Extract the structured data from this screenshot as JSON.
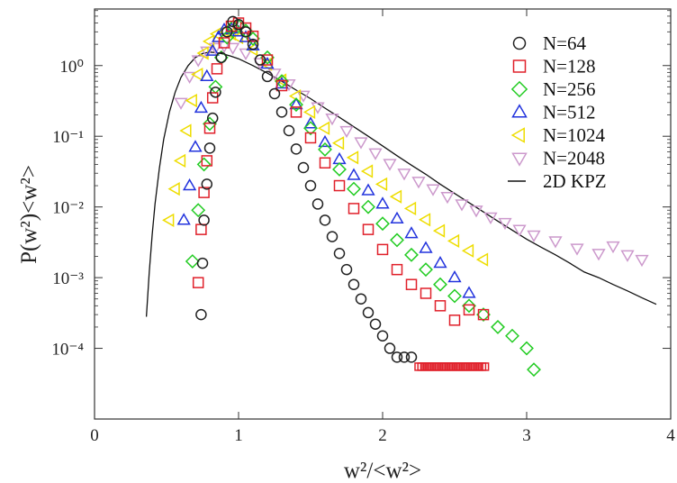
{
  "chart_data": {
    "type": "scatter",
    "xlabel": "w²/<w²>",
    "ylabel": "P(w²)<w²>",
    "xlim": [
      0,
      4
    ],
    "ylim_log10": [
      -5,
      0.8
    ],
    "yscale": "log",
    "grid": false,
    "legend_placement": "top-right",
    "x_ticks": [
      {
        "value": 0,
        "label": "0"
      },
      {
        "value": 1,
        "label": "1"
      },
      {
        "value": 2,
        "label": "2"
      },
      {
        "value": 3,
        "label": "3"
      },
      {
        "value": 4,
        "label": "4"
      }
    ],
    "y_ticks": [
      {
        "value": 0,
        "label": "10⁰"
      },
      {
        "value": -1,
        "label": "10⁻¹"
      },
      {
        "value": -2,
        "label": "10⁻²"
      },
      {
        "value": -3,
        "label": "10⁻³"
      },
      {
        "value": -4,
        "label": "10⁻⁴"
      }
    ],
    "series": [
      {
        "name": "N=64",
        "marker": "circle",
        "color": "#222222",
        "x": [
          0.74,
          0.75,
          0.76,
          0.78,
          0.8,
          0.82,
          0.84,
          0.88,
          0.92,
          0.96,
          1.0,
          1.05,
          1.1,
          1.15,
          1.2,
          1.25,
          1.3,
          1.35,
          1.4,
          1.45,
          1.5,
          1.55,
          1.6,
          1.65,
          1.7,
          1.75,
          1.8,
          1.85,
          1.9,
          1.95,
          2.0,
          2.05,
          2.1,
          2.15,
          2.2
        ],
        "y": [
          0.0003,
          0.0016,
          0.0065,
          0.021,
          0.068,
          0.18,
          0.42,
          1.3,
          3.0,
          4.2,
          3.8,
          3.0,
          2.0,
          1.2,
          0.7,
          0.4,
          0.22,
          0.12,
          0.066,
          0.036,
          0.02,
          0.011,
          0.0065,
          0.0038,
          0.0022,
          0.0013,
          0.0008,
          0.0005,
          0.00032,
          0.00022,
          0.00015,
          0.0001,
          7.5e-05,
          7.5e-05,
          7.5e-05
        ]
      },
      {
        "name": "N=128",
        "marker": "square",
        "color": "#e0202a",
        "x": [
          0.72,
          0.74,
          0.76,
          0.78,
          0.8,
          0.82,
          0.85,
          0.9,
          0.95,
          1.0,
          1.05,
          1.1,
          1.2,
          1.3,
          1.4,
          1.5,
          1.6,
          1.7,
          1.8,
          1.9,
          2.0,
          2.1,
          2.2,
          2.3,
          2.4,
          2.5,
          2.6,
          2.7
        ],
        "y": [
          0.00085,
          0.0048,
          0.016,
          0.045,
          0.13,
          0.35,
          0.9,
          2.1,
          3.6,
          4.0,
          3.4,
          2.6,
          1.2,
          0.52,
          0.22,
          0.095,
          0.042,
          0.02,
          0.0095,
          0.0048,
          0.0025,
          0.0013,
          0.0008,
          0.0006,
          0.0004,
          0.00025,
          0.00035,
          0.0003
        ],
        "plateau": {
          "x": [
            2.25,
            2.72
          ],
          "y": 5.5e-05
        }
      },
      {
        "name": "N=256",
        "marker": "diamond",
        "color": "#22cc22",
        "x": [
          0.68,
          0.72,
          0.76,
          0.8,
          0.84,
          0.88,
          0.92,
          0.96,
          1.0,
          1.05,
          1.1,
          1.2,
          1.3,
          1.4,
          1.5,
          1.6,
          1.7,
          1.8,
          1.9,
          2.0,
          2.1,
          2.2,
          2.3,
          2.4,
          2.5,
          2.6,
          2.7,
          2.8,
          2.9,
          3.0,
          3.05
        ],
        "y": [
          0.0017,
          0.009,
          0.04,
          0.15,
          0.5,
          1.3,
          2.5,
          3.5,
          3.6,
          3.1,
          2.4,
          1.3,
          0.6,
          0.28,
          0.13,
          0.065,
          0.034,
          0.018,
          0.01,
          0.0058,
          0.0034,
          0.0021,
          0.0013,
          0.0008,
          0.00055,
          0.0004,
          0.0003,
          0.0002,
          0.00015,
          0.0001,
          5e-05
        ]
      },
      {
        "name": "N=512",
        "marker": "triangle-up",
        "color": "#2233dd",
        "x": [
          0.62,
          0.66,
          0.7,
          0.74,
          0.78,
          0.82,
          0.86,
          0.9,
          0.95,
          1.0,
          1.05,
          1.1,
          1.2,
          1.3,
          1.4,
          1.5,
          1.6,
          1.7,
          1.8,
          1.9,
          2.0,
          2.1,
          2.2,
          2.3,
          2.4,
          2.5,
          2.6
        ],
        "y": [
          0.0065,
          0.02,
          0.07,
          0.25,
          0.7,
          1.6,
          2.5,
          3.2,
          3.3,
          3.0,
          2.5,
          1.9,
          1.05,
          0.55,
          0.28,
          0.15,
          0.082,
          0.047,
          0.028,
          0.017,
          0.011,
          0.0068,
          0.0042,
          0.0026,
          0.0016,
          0.001,
          0.0006
        ]
      },
      {
        "name": "N=1024",
        "marker": "triangle-left",
        "color": "#eedd00",
        "x": [
          0.52,
          0.56,
          0.6,
          0.64,
          0.68,
          0.72,
          0.76,
          0.8,
          0.85,
          0.9,
          0.95,
          1.0,
          1.1,
          1.2,
          1.3,
          1.4,
          1.5,
          1.6,
          1.7,
          1.8,
          1.9,
          2.0,
          2.1,
          2.2,
          2.3,
          2.4,
          2.5,
          2.6,
          2.7
        ],
        "y": [
          0.0065,
          0.018,
          0.045,
          0.12,
          0.32,
          0.75,
          1.5,
          2.2,
          2.8,
          3.0,
          2.8,
          2.5,
          1.7,
          1.05,
          0.62,
          0.37,
          0.22,
          0.13,
          0.08,
          0.05,
          0.032,
          0.021,
          0.014,
          0.0095,
          0.0066,
          0.0046,
          0.0033,
          0.0024,
          0.0018
        ]
      },
      {
        "name": "N=2048",
        "marker": "triangle-down",
        "color": "#cc99cc",
        "x": [
          0.6,
          0.66,
          0.72,
          0.78,
          0.84,
          0.9,
          0.96,
          1.05,
          1.15,
          1.25,
          1.35,
          1.45,
          1.55,
          1.65,
          1.75,
          1.85,
          1.95,
          2.05,
          2.15,
          2.25,
          2.35,
          2.45,
          2.55,
          2.65,
          2.75,
          2.85,
          2.95,
          3.05,
          3.2,
          3.35,
          3.5,
          3.6,
          3.7,
          3.8
        ],
        "y": [
          0.3,
          0.7,
          1.2,
          1.6,
          1.8,
          1.9,
          1.8,
          1.5,
          1.1,
          0.78,
          0.55,
          0.38,
          0.26,
          0.18,
          0.12,
          0.083,
          0.058,
          0.041,
          0.03,
          0.023,
          0.018,
          0.014,
          0.011,
          0.009,
          0.0072,
          0.006,
          0.0048,
          0.004,
          0.0033,
          0.0026,
          0.0022,
          0.0028,
          0.0021,
          0.0018
        ]
      },
      {
        "name": "2D KPZ",
        "marker": "line",
        "color": "#111111",
        "x": [
          0.36,
          0.38,
          0.4,
          0.42,
          0.45,
          0.48,
          0.52,
          0.56,
          0.6,
          0.65,
          0.7,
          0.75,
          0.8,
          0.85,
          0.9,
          0.95,
          1.0,
          1.1,
          1.2,
          1.3,
          1.4,
          1.5,
          1.6,
          1.7,
          1.8,
          1.9,
          2.0,
          2.1,
          2.2,
          2.3,
          2.4,
          2.5,
          2.6,
          2.7,
          2.8,
          2.9,
          3.0,
          3.1,
          3.2,
          3.3,
          3.4,
          3.5,
          3.6,
          3.7,
          3.8,
          3.9
        ],
        "y": [
          0.00028,
          0.0012,
          0.004,
          0.011,
          0.035,
          0.09,
          0.22,
          0.42,
          0.68,
          1.0,
          1.3,
          1.48,
          1.55,
          1.52,
          1.45,
          1.35,
          1.25,
          1.0,
          0.78,
          0.6,
          0.45,
          0.34,
          0.25,
          0.185,
          0.136,
          0.1,
          0.073,
          0.053,
          0.039,
          0.029,
          0.021,
          0.0155,
          0.0115,
          0.0085,
          0.0063,
          0.0047,
          0.0035,
          0.0027,
          0.0021,
          0.0016,
          0.0012,
          0.001,
          0.0008,
          0.00065,
          0.00052,
          0.00042
        ]
      }
    ]
  }
}
